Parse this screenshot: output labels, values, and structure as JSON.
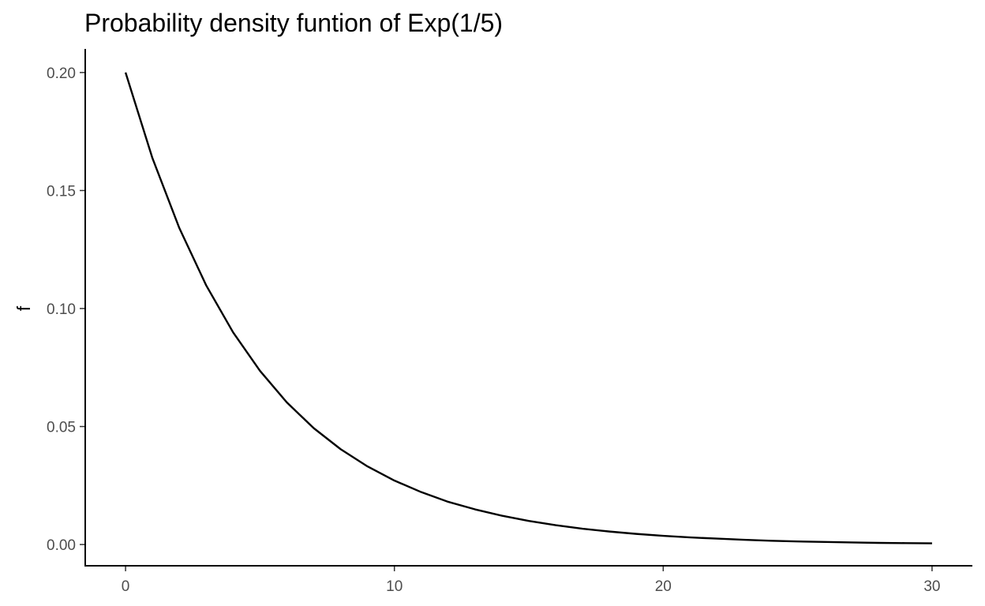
{
  "chart_data": {
    "type": "line",
    "title": "Probability density funtion of Exp(1/5)",
    "xlabel": "",
    "ylabel": "f",
    "xlim": [
      -1.5,
      31.5
    ],
    "ylim": [
      -0.009,
      0.21
    ],
    "x_ticks": [
      0,
      10,
      20,
      30
    ],
    "x_tick_labels": [
      "0",
      "10",
      "20",
      "30"
    ],
    "y_ticks": [
      0,
      0.05,
      0.1,
      0.15,
      0.2
    ],
    "y_tick_labels": [
      "0.00",
      "0.05",
      "0.10",
      "0.15",
      "0.20"
    ],
    "grid": false,
    "legend": "none",
    "series": [
      {
        "color": "#000000",
        "x": [
          0,
          1,
          2,
          3,
          4,
          5,
          6,
          7,
          8,
          9,
          10,
          11,
          12,
          13,
          14,
          15,
          16,
          17,
          18,
          19,
          20,
          21,
          22,
          23,
          24,
          25,
          26,
          27,
          28,
          29,
          30
        ],
        "y": [
          0.2,
          0.1637,
          0.1341,
          0.1098,
          0.0899,
          0.0736,
          0.0602,
          0.0493,
          0.0404,
          0.0331,
          0.0271,
          0.0222,
          0.0181,
          0.0149,
          0.0122,
          0.01,
          0.0082,
          0.0067,
          0.0055,
          0.0045,
          0.0037,
          0.003,
          0.0025,
          0.002,
          0.0016,
          0.0013,
          0.0011,
          0.0009,
          0.0007,
          0.0006,
          0.0005
        ]
      }
    ]
  }
}
